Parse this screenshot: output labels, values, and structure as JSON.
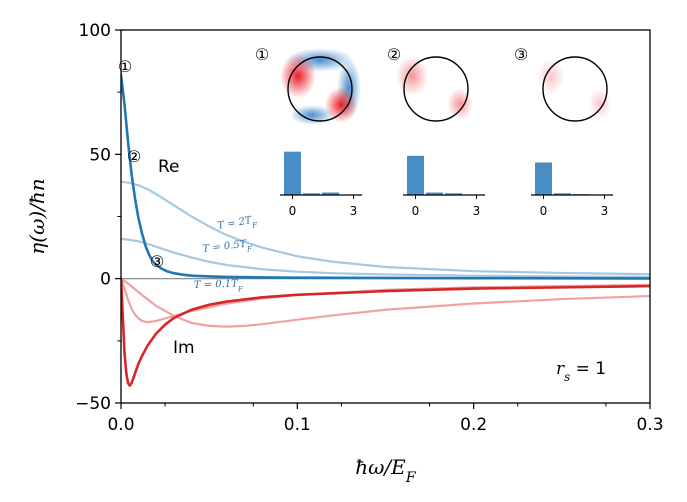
{
  "chart_data": {
    "type": "line",
    "xlabel": "ħω/E_F",
    "ylabel": "η(ω)/ħn",
    "xlim": [
      0,
      0.3
    ],
    "ylim": [
      -50,
      100
    ],
    "xticks": [
      {
        "value": 0,
        "label": "0.0"
      },
      {
        "value": 0.1,
        "label": "0.1"
      },
      {
        "value": 0.2,
        "label": "0.2"
      },
      {
        "value": 0.3,
        "label": "0.3"
      }
    ],
    "yticks": [
      {
        "value": -50,
        "label": "−50"
      },
      {
        "value": 0,
        "label": "0"
      },
      {
        "value": 50,
        "label": "50"
      },
      {
        "value": 100,
        "label": "100"
      }
    ],
    "zero_line": true,
    "series": [
      {
        "name": "T = 0.1T_F",
        "part": "Re",
        "color": "#1f77b4",
        "x": [
          0,
          0.002,
          0.004,
          0.006,
          0.008,
          0.01,
          0.012,
          0.014,
          0.016,
          0.018,
          0.02,
          0.023,
          0.026,
          0.03,
          0.035,
          0.04,
          0.05,
          0.06,
          0.08,
          0.1,
          0.15,
          0.2,
          0.3
        ],
        "y": [
          82,
          70,
          55,
          42,
          32,
          24,
          18,
          13,
          9.5,
          7,
          5.5,
          4,
          3,
          2.2,
          1.6,
          1.2,
          0.9,
          0.7,
          0.5,
          0.4,
          0.3,
          0.2,
          0.1
        ]
      },
      {
        "name": "T = 0.5T_F",
        "part": "Re",
        "color": "#a6c8e0",
        "x": [
          0,
          0.005,
          0.01,
          0.015,
          0.02,
          0.03,
          0.04,
          0.05,
          0.06,
          0.08,
          0.1,
          0.12,
          0.15,
          0.2,
          0.25,
          0.3
        ],
        "y": [
          16,
          15.6,
          15,
          14,
          12.8,
          10.5,
          8.5,
          6.8,
          5.5,
          3.8,
          2.8,
          2.2,
          1.7,
          1.2,
          0.9,
          0.7
        ]
      },
      {
        "name": "T = 2T_F",
        "part": "Re",
        "color": "#a6c8e0",
        "x": [
          0,
          0.005,
          0.01,
          0.015,
          0.02,
          0.03,
          0.04,
          0.05,
          0.06,
          0.07,
          0.08,
          0.1,
          0.12,
          0.15,
          0.2,
          0.25,
          0.3
        ],
        "y": [
          39,
          38.5,
          37.5,
          36,
          34,
          29.5,
          25,
          21,
          17.5,
          14.8,
          12.5,
          9,
          6.8,
          4.7,
          3,
          2.3,
          1.8
        ]
      },
      {
        "name": "T = 0.1T_F",
        "part": "Im",
        "color": "#d62728",
        "x": [
          0,
          0.001,
          0.002,
          0.003,
          0.004,
          0.005,
          0.006,
          0.007,
          0.008,
          0.01,
          0.012,
          0.015,
          0.02,
          0.025,
          0.03,
          0.04,
          0.05,
          0.06,
          0.08,
          0.1,
          0.15,
          0.2,
          0.25,
          0.3
        ],
        "y": [
          0,
          -15,
          -30,
          -38,
          -42,
          -43,
          -42,
          -40,
          -38,
          -34,
          -31,
          -27,
          -22,
          -18.5,
          -15.8,
          -12.5,
          -10.5,
          -9.2,
          -7.5,
          -6.5,
          -5,
          -4,
          -3.5,
          -3
        ]
      },
      {
        "name": "T = 0.5T_F",
        "part": "Im",
        "color": "#efa2a2",
        "x": [
          0,
          0.002,
          0.004,
          0.006,
          0.008,
          0.01,
          0.012,
          0.015,
          0.02,
          0.025,
          0.03,
          0.035,
          0.04,
          0.05,
          0.06,
          0.08,
          0.1,
          0.15,
          0.2,
          0.3
        ],
        "y": [
          0,
          -4,
          -8.5,
          -12,
          -14.5,
          -16,
          -17,
          -17.5,
          -17,
          -16,
          -15,
          -14,
          -13,
          -11.5,
          -10,
          -8,
          -6.5,
          -4.5,
          -3.5,
          -2.5
        ]
      },
      {
        "name": "T = 2T_F",
        "part": "Im",
        "color": "#efa2a2",
        "x": [
          0,
          0.005,
          0.01,
          0.02,
          0.03,
          0.04,
          0.05,
          0.06,
          0.07,
          0.08,
          0.1,
          0.12,
          0.15,
          0.2,
          0.25,
          0.3
        ],
        "y": [
          0,
          -2.5,
          -5.5,
          -11,
          -15,
          -17.8,
          -19,
          -19.3,
          -19,
          -18.3,
          -16.5,
          -14.8,
          -12.5,
          -10,
          -8.2,
          -7
        ]
      }
    ],
    "annotations": {
      "re_label": "Re",
      "im_label": "Im",
      "rs_label": "r_s = 1",
      "temp_labels": [
        "T = 2T_F",
        "T = 0.5T_F",
        "T = 0.1T_F"
      ],
      "markers": [
        "①",
        "②",
        "③"
      ]
    },
    "insets": [
      {
        "marker": "①",
        "bar_values": [
          52,
          2,
          3
        ],
        "tick_labels": [
          "0",
          "3"
        ]
      },
      {
        "marker": "②",
        "bar_values": [
          47,
          3,
          2
        ],
        "tick_labels": [
          "0",
          "3"
        ]
      },
      {
        "marker": "③",
        "bar_values": [
          39,
          2,
          1
        ],
        "tick_labels": [
          "0",
          "3"
        ]
      }
    ]
  }
}
